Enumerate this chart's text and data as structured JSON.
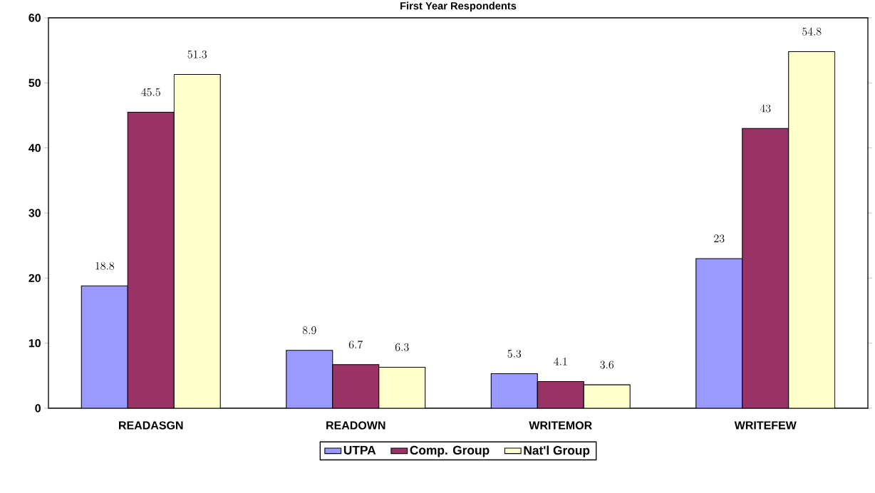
{
  "chart_data": {
    "type": "bar",
    "title": "First Year Respondents",
    "categories": [
      "READASGN",
      "READOWN",
      "WRITEMOR",
      "WRITEFEW"
    ],
    "series": [
      {
        "name": "UTPA",
        "color": "#9999ff",
        "values": [
          18.8,
          8.9,
          5.3,
          23
        ]
      },
      {
        "name": "Comp. Group",
        "color": "#993366",
        "values": [
          45.5,
          6.7,
          4.1,
          43
        ]
      },
      {
        "name": "Nat'l Group",
        "color": "#ffffcc",
        "values": [
          51.3,
          6.3,
          3.6,
          54.8
        ]
      }
    ],
    "ylim": [
      0,
      60
    ],
    "yticks": [
      0,
      10,
      20,
      30,
      40,
      50,
      60
    ],
    "data_labels": true,
    "grid": false,
    "legend": "bottom"
  }
}
